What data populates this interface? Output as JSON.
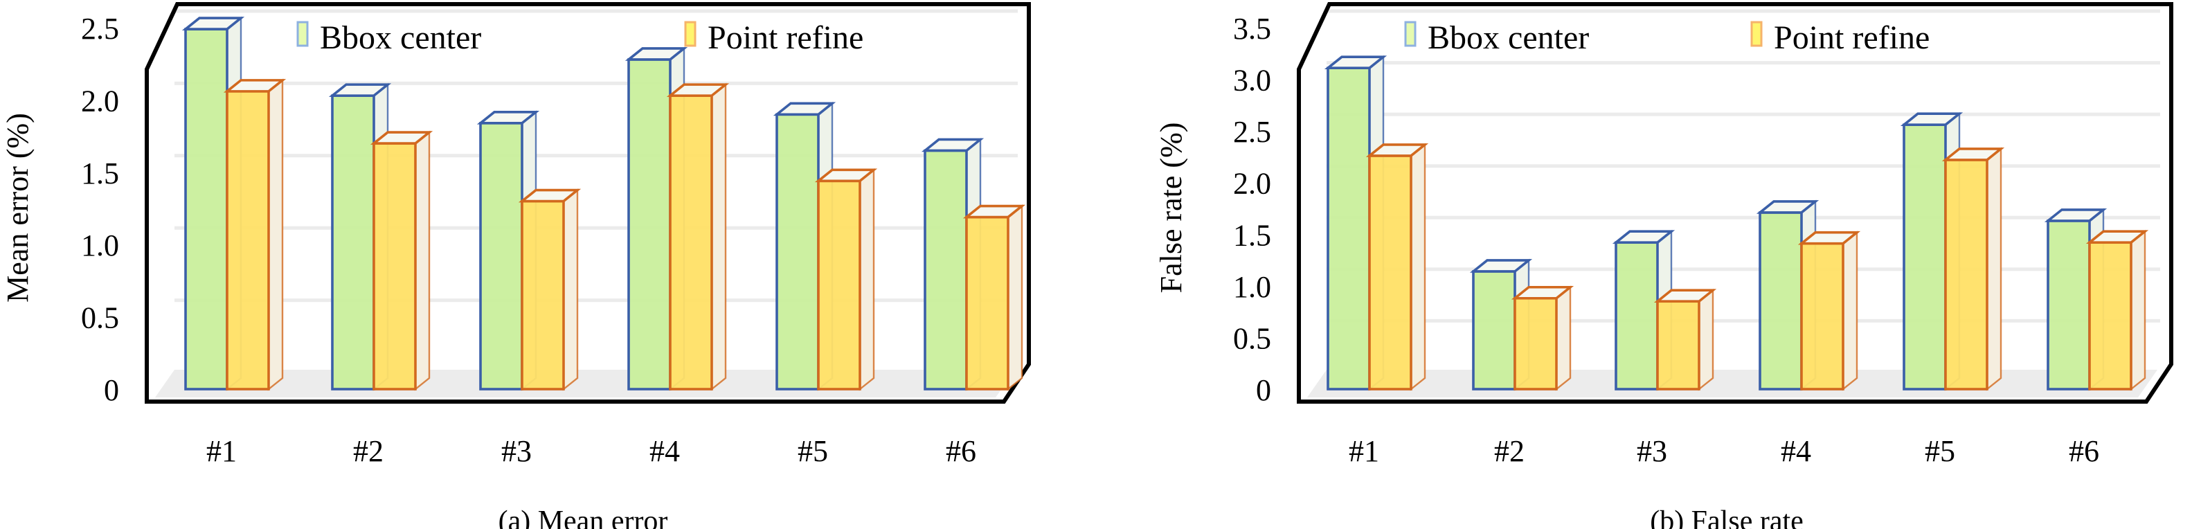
{
  "chart_data": [
    {
      "type": "bar",
      "title": "(a) Mean error",
      "xlabel": "",
      "ylabel": "Mean error (%)",
      "categories": [
        "#1",
        "#2",
        "#3",
        "#4",
        "#5",
        "#6"
      ],
      "yticks": [
        "0",
        "0.5",
        "1.0",
        "1.5",
        "2.0",
        "2.5"
      ],
      "ylim": [
        0,
        2.5
      ],
      "grid": true,
      "legend_position": "top",
      "series": [
        {
          "name": "Bbox center",
          "color": "#c9ef9c",
          "edge": "#3a5fa8",
          "values": [
            2.49,
            2.03,
            1.84,
            2.28,
            1.9,
            1.65
          ]
        },
        {
          "name": "Point refine",
          "color": "#ffe066",
          "edge": "#d2691e",
          "values": [
            2.06,
            1.7,
            1.3,
            2.03,
            1.44,
            1.19
          ]
        }
      ]
    },
    {
      "type": "bar",
      "title": "(b) False rate",
      "xlabel": "",
      "ylabel": "False rate (%)",
      "categories": [
        "#1",
        "#2",
        "#3",
        "#4",
        "#5",
        "#6"
      ],
      "yticks": [
        "0",
        "0.5",
        "1.0",
        "1.5",
        "2.0",
        "2.5",
        "3.0",
        "3.5"
      ],
      "ylim": [
        0,
        3.5
      ],
      "grid": true,
      "legend_position": "top",
      "series": [
        {
          "name": "Bbox center",
          "color": "#c9ef9c",
          "edge": "#3a5fa8",
          "values": [
            3.11,
            1.14,
            1.42,
            1.71,
            2.56,
            1.63
          ]
        },
        {
          "name": "Point refine",
          "color": "#ffe066",
          "edge": "#d2691e",
          "values": [
            2.26,
            0.88,
            0.85,
            1.41,
            2.22,
            1.42
          ]
        }
      ]
    }
  ]
}
